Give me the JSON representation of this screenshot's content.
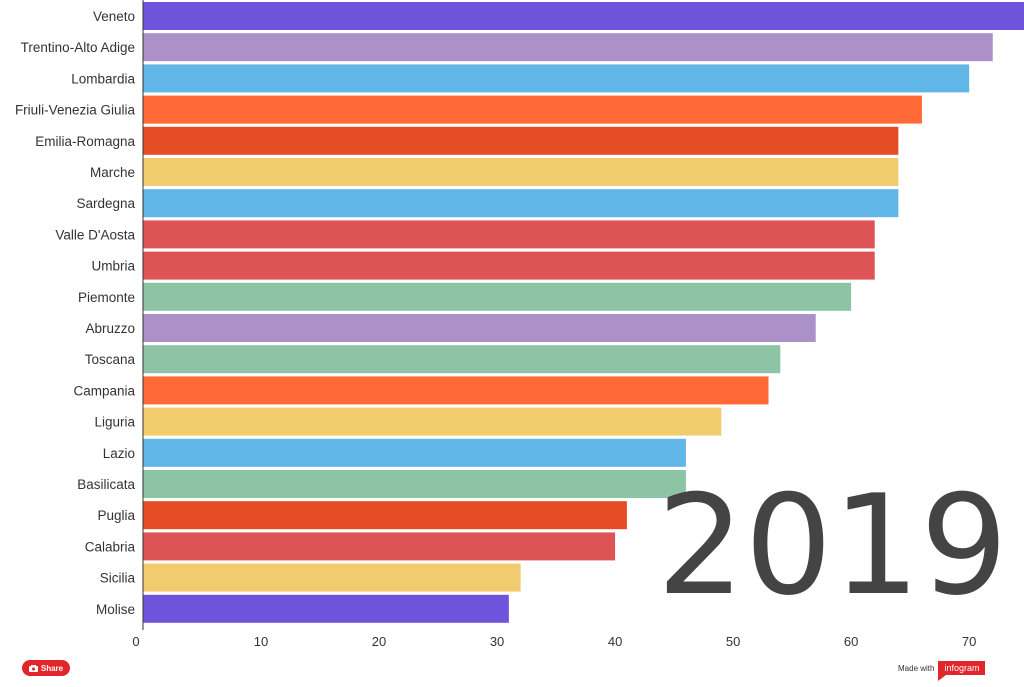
{
  "chart_data": {
    "type": "bar",
    "orientation": "horizontal",
    "categories": [
      "Veneto",
      "Trentino-Alto Adige",
      "Lombardia",
      "Friuli-Venezia Giulia",
      "Emilia-Romagna",
      "Marche",
      "Sardegna",
      "Valle D'Aosta",
      "Umbria",
      "Piemonte",
      "Abruzzo",
      "Toscana",
      "Campania",
      "Liguria",
      "Lazio",
      "Basilicata",
      "Puglia",
      "Calabria",
      "Sicilia",
      "Molise"
    ],
    "values": [
      75,
      72,
      70,
      66,
      64,
      64,
      64,
      62,
      62,
      60,
      57,
      54,
      53,
      49,
      46,
      46,
      41,
      40,
      32,
      31
    ],
    "colors": [
      "#6c55db",
      "#ab91c7",
      "#60b6e6",
      "#ff6a37",
      "#e54d25",
      "#f0cc6e",
      "#60b6e6",
      "#de5356",
      "#de5356",
      "#8ec4a6",
      "#ab91c7",
      "#8ec4a6",
      "#ff6a37",
      "#f0cc6e",
      "#60b6e6",
      "#8ec4a6",
      "#e54d25",
      "#de5356",
      "#f0cc6e",
      "#6c55db"
    ],
    "xticks": [
      "0",
      "10",
      "20",
      "30",
      "40",
      "50",
      "60",
      "70"
    ],
    "xlim": [
      0,
      73.8
    ],
    "year": "2019",
    "grid": false,
    "legend": "none"
  },
  "footer": {
    "share_label": "Share",
    "made_with": "Made with",
    "brand": "infogram"
  }
}
